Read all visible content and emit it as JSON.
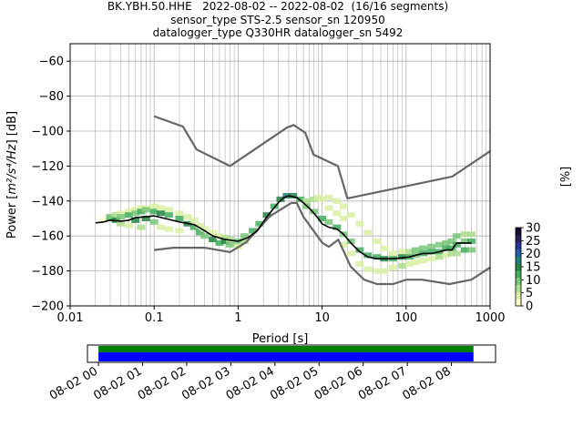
{
  "title_lines": [
    "BK.YBH.50.HHE   2022-08-02 -- 2022-08-02  (16/16 segments)",
    "sensor_type STS-2.5 sensor_sn 120950",
    "datalogger_type Q330HR datalogger_sn 5492"
  ],
  "chart_data": [
    {
      "type": "heatmap",
      "xlabel": "Period [s]",
      "ylabel_prefix": "Power [",
      "ylabel_math": "m²/s⁴/Hz",
      "ylabel_suffix": "] [dB]",
      "x_scale": "log",
      "xlim": [
        0.01,
        1000
      ],
      "ylim": [
        -200,
        -50
      ],
      "x_ticks": [
        0.01,
        0.1,
        1,
        10,
        100,
        1000
      ],
      "x_tick_labels": [
        "0.01",
        "0.1",
        "1",
        "10",
        "100",
        "1000"
      ],
      "y_ticks": [
        -200,
        -180,
        -160,
        -140,
        -120,
        -100,
        -80,
        -60
      ],
      "y_tick_labels": [
        "−200",
        "−180",
        "−160",
        "−140",
        "−120",
        "−100",
        "−80",
        "−60"
      ],
      "grid": true,
      "colorbar": {
        "label": "[%]",
        "ticks": [
          0,
          5,
          10,
          15,
          20,
          25,
          30
        ],
        "tick_labels": [
          "0",
          "5",
          "10",
          "15",
          "20",
          "25",
          "30"
        ],
        "range": [
          0,
          30
        ],
        "colors": [
          "#ffffcc",
          "#d9f0a3",
          "#addd8e",
          "#78c679",
          "#41ab5d",
          "#238443",
          "#1f7f7a",
          "#225ea8",
          "#253494",
          "#2a1f5c",
          "#1a0b2e"
        ]
      },
      "noise_models": {
        "high_noise_model": {
          "x": [
            0.1,
            0.22,
            0.32,
            0.8,
            3.8,
            4.6,
            6.3,
            7.9,
            15.4,
            20,
            354.8,
            1000
          ],
          "y": [
            -91.5,
            -97.4,
            -110.5,
            -120,
            -98,
            -96.5,
            -101,
            -113.5,
            -120,
            -138.5,
            -126,
            -111.5
          ]
        },
        "low_noise_model": {
          "x": [
            0.1,
            0.17,
            0.4,
            0.8,
            1.24,
            2.4,
            4.3,
            5,
            6,
            10,
            12,
            15.6,
            21.9,
            31.6,
            45,
            70,
            101,
            154,
            328,
            600,
            1000
          ],
          "y": [
            -168,
            -166.7,
            -166.7,
            -169.2,
            -163.7,
            -148.6,
            -141.1,
            -141.1,
            -149,
            -163.8,
            -166.2,
            -162.1,
            -177.5,
            -185,
            -187.5,
            -187.5,
            -185,
            -185,
            -187.5,
            -185,
            -178
          ]
        }
      },
      "mean_curve": {
        "x": [
          0.02,
          0.025,
          0.03,
          0.04,
          0.05,
          0.06,
          0.08,
          0.1,
          0.15,
          0.2,
          0.3,
          0.4,
          0.5,
          0.7,
          1.0,
          1.3,
          1.7,
          2.2,
          3.0,
          3.5,
          4.0,
          4.5,
          5.0,
          6.0,
          7.0,
          8.0,
          9.0,
          10.0,
          12.0,
          15.0,
          18.0,
          22.0,
          28.0,
          35.0,
          45.0,
          55.0,
          70.0,
          90.0,
          110.0,
          130.0,
          160.0,
          200.0,
          250.0,
          300.0,
          350.0,
          400.0,
          500.0,
          600.0
        ],
        "y": [
          -152.5,
          -152,
          -151,
          -151.5,
          -151,
          -149.5,
          -149,
          -148.5,
          -150.5,
          -152,
          -153.5,
          -157,
          -160,
          -162,
          -163,
          -161,
          -157,
          -149,
          -141,
          -138,
          -137,
          -137.5,
          -138,
          -141,
          -144,
          -147,
          -150,
          -153,
          -155,
          -156,
          -159,
          -164,
          -169,
          -172,
          -173,
          -173,
          -173,
          -172.5,
          -172,
          -171,
          -170,
          -170,
          -169,
          -168,
          -168,
          -164,
          -164,
          -164
        ]
      },
      "pdf_cells": [
        [
          0.025,
          -151,
          1
        ],
        [
          0.03,
          -150,
          12
        ],
        [
          0.03,
          -149,
          9
        ],
        [
          0.035,
          -148,
          5
        ],
        [
          0.035,
          -151,
          14
        ],
        [
          0.04,
          -147,
          4
        ],
        [
          0.04,
          -149,
          10
        ],
        [
          0.04,
          -153,
          6
        ],
        [
          0.05,
          -146,
          3
        ],
        [
          0.05,
          -148,
          12
        ],
        [
          0.05,
          -154,
          4
        ],
        [
          0.06,
          -145,
          2
        ],
        [
          0.06,
          -147,
          10
        ],
        [
          0.06,
          -151,
          15
        ],
        [
          0.07,
          -144,
          3
        ],
        [
          0.07,
          -146,
          11
        ],
        [
          0.07,
          -155,
          6
        ],
        [
          0.08,
          -144,
          2
        ],
        [
          0.08,
          -145,
          9
        ],
        [
          0.08,
          -150,
          15
        ],
        [
          0.1,
          -143,
          2
        ],
        [
          0.1,
          -146,
          12
        ],
        [
          0.1,
          -152,
          8
        ],
        [
          0.12,
          -144,
          4
        ],
        [
          0.12,
          -147,
          14
        ],
        [
          0.12,
          -155,
          3
        ],
        [
          0.15,
          -145,
          3
        ],
        [
          0.15,
          -148,
          12
        ],
        [
          0.15,
          -156,
          3
        ],
        [
          0.2,
          -147,
          3
        ],
        [
          0.2,
          -150,
          12
        ],
        [
          0.2,
          -157,
          3
        ],
        [
          0.25,
          -149,
          4
        ],
        [
          0.25,
          -153,
          14
        ],
        [
          0.3,
          -151,
          3
        ],
        [
          0.3,
          -155,
          12
        ],
        [
          0.35,
          -154,
          4
        ],
        [
          0.35,
          -158,
          13
        ],
        [
          0.4,
          -156,
          3
        ],
        [
          0.4,
          -160,
          10
        ],
        [
          0.5,
          -158,
          3
        ],
        [
          0.5,
          -162,
          14
        ],
        [
          0.6,
          -160,
          3
        ],
        [
          0.6,
          -164,
          12
        ],
        [
          0.7,
          -161,
          5
        ],
        [
          0.7,
          -163,
          15
        ],
        [
          0.8,
          -162,
          6
        ],
        [
          0.8,
          -165,
          8
        ],
        [
          1.0,
          -163,
          8
        ],
        [
          1.0,
          -166,
          4
        ],
        [
          1.2,
          -160,
          8
        ],
        [
          1.2,
          -163,
          5
        ],
        [
          1.5,
          -157,
          12
        ],
        [
          1.8,
          -153,
          12
        ],
        [
          2.2,
          -148,
          14
        ],
        [
          2.7,
          -143,
          13
        ],
        [
          3.2,
          -139,
          14
        ],
        [
          3.8,
          -137,
          18
        ],
        [
          4.5,
          -137,
          15
        ],
        [
          5.5,
          -139,
          12
        ],
        [
          6.5,
          -140,
          6
        ],
        [
          6.5,
          -143,
          10
        ],
        [
          8.0,
          -139,
          5
        ],
        [
          8.0,
          -146,
          10
        ],
        [
          9.0,
          -138,
          2
        ],
        [
          10.0,
          -139,
          3
        ],
        [
          10.0,
          -150,
          12
        ],
        [
          12.0,
          -138,
          3
        ],
        [
          12.0,
          -144,
          4
        ],
        [
          12.0,
          -152,
          10
        ],
        [
          15.0,
          -140,
          3
        ],
        [
          15.0,
          -147,
          4
        ],
        [
          15.0,
          -155,
          12
        ],
        [
          18.0,
          -143,
          3
        ],
        [
          18.0,
          -150,
          3
        ],
        [
          18.0,
          -159,
          8
        ],
        [
          18.0,
          -165,
          3
        ],
        [
          22.0,
          -148,
          3
        ],
        [
          22.0,
          -163,
          10
        ],
        [
          22.0,
          -170,
          3
        ],
        [
          28.0,
          -153,
          3
        ],
        [
          28.0,
          -168,
          12
        ],
        [
          28.0,
          -176,
          2
        ],
        [
          35.0,
          -158,
          3
        ],
        [
          35.0,
          -171,
          12
        ],
        [
          35.0,
          -179,
          3
        ],
        [
          45.0,
          -163,
          3
        ],
        [
          45.0,
          -172,
          13
        ],
        [
          45.0,
          -180,
          3
        ],
        [
          55.0,
          -167,
          4
        ],
        [
          55.0,
          -173,
          14
        ],
        [
          55.0,
          -180,
          3
        ],
        [
          70.0,
          -170,
          3
        ],
        [
          70.0,
          -173,
          12
        ],
        [
          70.0,
          -178,
          4
        ],
        [
          90.0,
          -169,
          4
        ],
        [
          90.0,
          -172,
          14
        ],
        [
          90.0,
          -177,
          5
        ],
        [
          110.0,
          -169,
          6
        ],
        [
          110.0,
          -172,
          13
        ],
        [
          110.0,
          -176,
          3
        ],
        [
          130.0,
          -168,
          8
        ],
        [
          130.0,
          -171,
          10
        ],
        [
          130.0,
          -175,
          4
        ],
        [
          160.0,
          -167,
          10
        ],
        [
          160.0,
          -170,
          12
        ],
        [
          160.0,
          -174,
          3
        ],
        [
          200.0,
          -166,
          10
        ],
        [
          200.0,
          -169,
          13
        ],
        [
          200.0,
          -173,
          4
        ],
        [
          250.0,
          -165,
          8
        ],
        [
          250.0,
          -169,
          12
        ],
        [
          250.0,
          -172,
          5
        ],
        [
          300.0,
          -164,
          10
        ],
        [
          300.0,
          -167,
          12
        ],
        [
          300.0,
          -171,
          4
        ],
        [
          350.0,
          -163,
          8
        ],
        [
          350.0,
          -167,
          12
        ],
        [
          350.0,
          -170,
          5
        ],
        [
          400.0,
          -160,
          10
        ],
        [
          400.0,
          -165,
          12
        ],
        [
          400.0,
          -170,
          5
        ],
        [
          500.0,
          -159,
          6
        ],
        [
          500.0,
          -163,
          10
        ],
        [
          500.0,
          -168,
          12
        ],
        [
          600.0,
          -159,
          5
        ],
        [
          600.0,
          -163,
          12
        ],
        [
          600.0,
          -168,
          10
        ]
      ]
    },
    {
      "type": "bar",
      "x_tick_labels": [
        "08-02 00",
        "08-02 01",
        "08-02 02",
        "08-02 03",
        "08-02 04",
        "08-02 05",
        "08-02 06",
        "08-02 07",
        "08-02 08"
      ],
      "x_range_hours": [
        -0.25,
        9.0
      ],
      "series": [
        {
          "kind": "data_availability",
          "start_h": 0.0,
          "end_h": 8.5,
          "color": "#008000"
        },
        {
          "kind": "psd_coverage",
          "start_h": 0.0,
          "end_h": 8.5,
          "color": "#0000ff"
        }
      ]
    }
  ]
}
